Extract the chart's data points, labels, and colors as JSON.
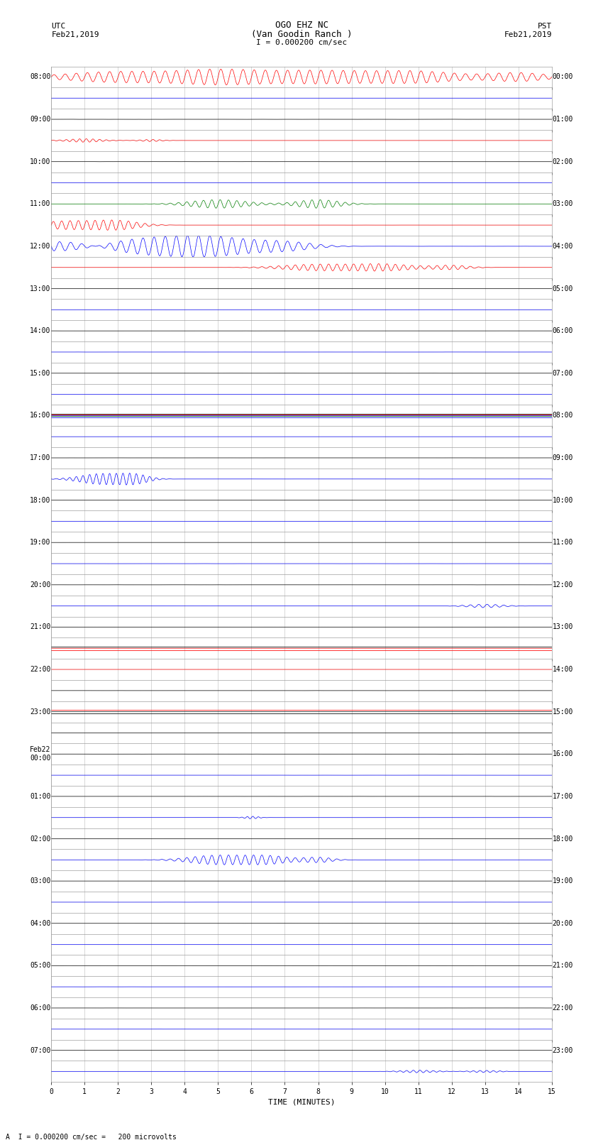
{
  "title_line1": "OGO EHZ NC",
  "title_line2": "(Van Goodin Ranch )",
  "scale_label": "I = 0.000200 cm/sec",
  "bottom_label": "A  I = 0.000200 cm/sec =   200 microvolts",
  "figsize": [
    8.5,
    16.13
  ],
  "dpi": 100,
  "n_rows": 48,
  "background_color": "#ffffff",
  "grid_color": "#aaaaaa",
  "xlabel": "TIME (MINUTES)"
}
